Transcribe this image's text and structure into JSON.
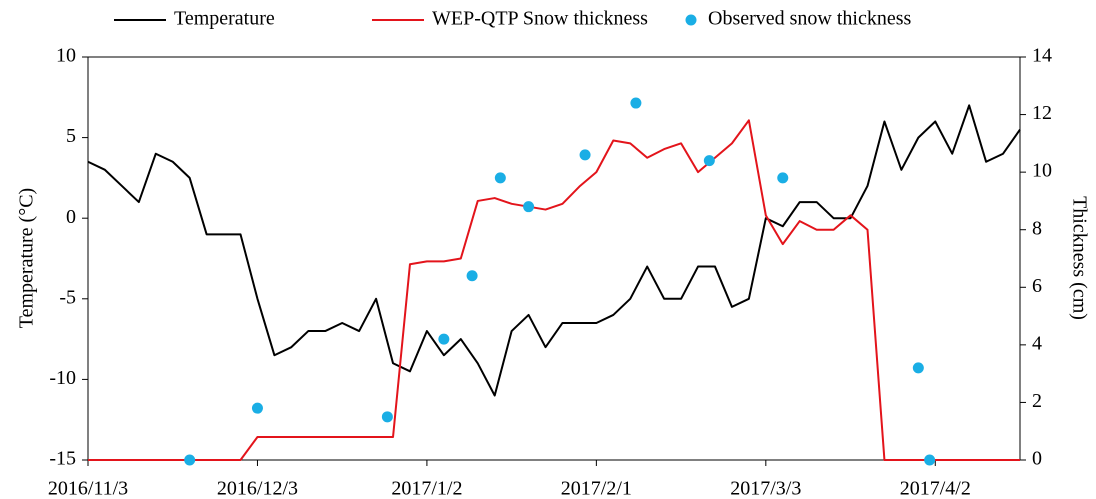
{
  "chart_data": {
    "type": "line",
    "x": [
      "2016/11/3",
      "2016/11/6",
      "2016/11/9",
      "2016/11/12",
      "2016/11/15",
      "2016/11/18",
      "2016/11/21",
      "2016/11/24",
      "2016/11/27",
      "2016/11/30",
      "2016/12/3",
      "2016/12/6",
      "2016/12/9",
      "2016/12/12",
      "2016/12/15",
      "2016/12/18",
      "2016/12/21",
      "2016/12/24",
      "2016/12/27",
      "2016/12/30",
      "2017/1/2",
      "2017/1/5",
      "2017/1/8",
      "2017/1/11",
      "2017/1/14",
      "2017/1/17",
      "2017/1/20",
      "2017/1/23",
      "2017/1/26",
      "2017/1/29",
      "2017/2/1",
      "2017/2/4",
      "2017/2/7",
      "2017/2/10",
      "2017/2/13",
      "2017/2/16",
      "2017/2/19",
      "2017/2/22",
      "2017/2/25",
      "2017/2/28",
      "2017/3/3",
      "2017/3/6",
      "2017/3/9",
      "2017/3/12",
      "2017/3/15",
      "2017/3/18",
      "2017/3/21",
      "2017/3/24",
      "2017/3/27",
      "2017/3/30",
      "2017/4/2",
      "2017/4/5",
      "2017/4/8",
      "2017/4/11",
      "2017/4/14",
      "2017/4/17"
    ],
    "series": [
      {
        "name": "Temperature",
        "color": "#000000",
        "values": [
          3.5,
          3,
          2,
          1,
          4,
          3.5,
          2.5,
          -1,
          -1,
          -1,
          -5,
          -8.5,
          -8,
          -7,
          -7,
          -6.5,
          -7,
          -5,
          -9,
          -9.5,
          -7,
          -8.5,
          -7.5,
          -9,
          -11,
          -7,
          -6,
          -8,
          -6.5,
          -6.5,
          -6.5,
          -6,
          -5,
          -3,
          -5,
          -5,
          -3,
          -3,
          -5.5,
          -5,
          0,
          -0.5,
          1,
          1,
          0,
          0,
          2,
          6,
          3,
          5,
          6,
          4,
          7,
          3.5,
          4,
          5.5
        ]
      },
      {
        "name": "WEP-QTP Snow thickness",
        "color": "#e3141b",
        "axis": "y2",
        "values": [
          0,
          0,
          0,
          0,
          0,
          0,
          0,
          0,
          0,
          0,
          0.8,
          0.8,
          0.8,
          0.8,
          0.8,
          0.8,
          0.8,
          0.8,
          0.8,
          6.8,
          6.9,
          6.9,
          7,
          9,
          9.1,
          8.9,
          8.8,
          8.7,
          8.9,
          9.5,
          10,
          11.1,
          11,
          10.5,
          10.8,
          11,
          10,
          10.5,
          11,
          11.8,
          8.5,
          7.5,
          8.3,
          8,
          8,
          8.5,
          8,
          0,
          0,
          0,
          0,
          0,
          0,
          0,
          0,
          0
        ]
      },
      {
        "name": "Observed snow thickness",
        "type": "scatter",
        "color": "#1aaee5",
        "axis": "y2",
        "x": [
          "2016/11/21",
          "2016/12/3",
          "2016/12/26",
          "2017/1/5",
          "2017/1/10",
          "2017/1/15",
          "2017/1/20",
          "2017/1/30",
          "2017/2/8",
          "2017/2/21",
          "2017/3/6",
          "2017/3/30",
          "2017/4/1"
        ],
        "values": [
          0,
          1.8,
          1.5,
          4.2,
          6.4,
          9.8,
          8.8,
          10.6,
          12.4,
          10.4,
          9.8,
          3.2,
          0
        ]
      }
    ],
    "xlim": [
      "2016/11/3",
      "2017/4/17"
    ],
    "xticks": [
      "2016/11/3",
      "2016/12/3",
      "2017/1/2",
      "2017/2/1",
      "2017/3/3",
      "2017/4/2"
    ],
    "ylim": [
      -15,
      10
    ],
    "yticks": [
      -15,
      -10,
      -5,
      0,
      5,
      10
    ],
    "y2lim": [
      0,
      14
    ],
    "y2ticks": [
      0,
      2,
      4,
      6,
      8,
      10,
      12,
      14
    ],
    "ylabel": "Temperature (°C)",
    "y2label": "Thickness (cm)"
  }
}
